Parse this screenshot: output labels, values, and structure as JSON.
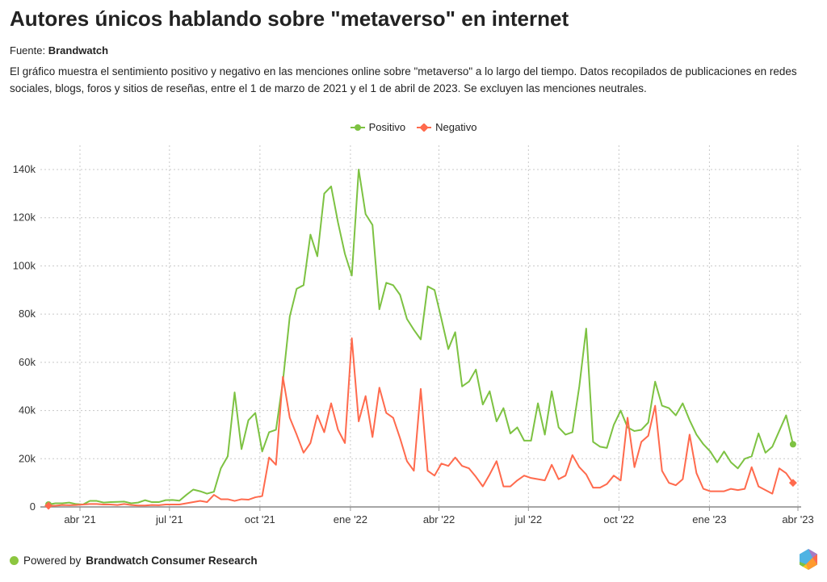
{
  "header": {
    "title": "Autores únicos hablando sobre \"metaverso\" en internet",
    "source_label": "Fuente: ",
    "source_name": "Brandwatch",
    "description": "El gráfico muestra el sentimiento positivo y negativo en las menciones online sobre \"metaverso\" a lo largo del tiempo. Datos recopilados de publicaciones en redes sociales, blogs, foros y sitios de reseñas, entre el 1 de marzo de 2021 y el 1 de abril de 2023. Se excluyen las menciones neutrales."
  },
  "footer": {
    "prefix": "Powered by ",
    "brand": "Brandwatch Consumer Research"
  },
  "chart_data": {
    "type": "line",
    "title": "Autores únicos hablando sobre \"metaverso\" en internet",
    "xlabel": "",
    "ylabel": "",
    "x_unit": "days since 2021-02-28 (weekly points)",
    "x_range": [
      0,
      757
    ],
    "ylim": [
      0,
      140000
    ],
    "grid": true,
    "legend_position": "top-center",
    "y_ticks": [
      {
        "value": 0,
        "label": "0"
      },
      {
        "value": 20000,
        "label": "20k"
      },
      {
        "value": 40000,
        "label": "40k"
      },
      {
        "value": 60000,
        "label": "60k"
      },
      {
        "value": 80000,
        "label": "80k"
      },
      {
        "value": 100000,
        "label": "100k"
      },
      {
        "value": 120000,
        "label": "120k"
      },
      {
        "value": 140000,
        "label": "140k"
      }
    ],
    "x_ticks": [
      {
        "value": 32,
        "label": "abr '21"
      },
      {
        "value": 123,
        "label": "jul '21"
      },
      {
        "value": 215,
        "label": "oct '21"
      },
      {
        "value": 307,
        "label": "ene '22"
      },
      {
        "value": 397,
        "label": "abr '22"
      },
      {
        "value": 488,
        "label": "jul '22"
      },
      {
        "value": 580,
        "label": "oct '22"
      },
      {
        "value": 672,
        "label": "ene '23"
      },
      {
        "value": 762,
        "label": "abr '23"
      }
    ],
    "series": [
      {
        "name": "Positivo",
        "color": "#7dc242",
        "values": [
          1000,
          1500,
          1500,
          1800,
          1200,
          1000,
          2500,
          2500,
          1800,
          2000,
          2100,
          2200,
          1500,
          1800,
          2800,
          2000,
          2000,
          2800,
          2900,
          2600,
          5000,
          7200,
          6500,
          5500,
          6300,
          16000,
          21000,
          47500,
          24000,
          36000,
          39000,
          23000,
          31000,
          32000,
          52000,
          79000,
          90500,
          92000,
          113000,
          104000,
          130000,
          133000,
          118000,
          105000,
          96000,
          140000,
          121500,
          117000,
          82000,
          93000,
          92000,
          88000,
          78000,
          73500,
          69500,
          91500,
          90000,
          78000,
          65500,
          72500,
          50000,
          52000,
          57000,
          42500,
          48000,
          35500,
          41000,
          30500,
          33000,
          27500,
          27500,
          43000,
          30000,
          48000,
          33000,
          30000,
          31000,
          50000,
          74000,
          27000,
          25000,
          24500,
          34000,
          40000,
          33000,
          31500,
          32000,
          35000,
          52000,
          42000,
          41000,
          38000,
          43000,
          36000,
          30000,
          26000,
          23000,
          18500,
          23000,
          18500,
          16000,
          20000,
          21000,
          30500,
          22500,
          25000,
          31500,
          38000,
          26000
        ]
      },
      {
        "name": "Negativo",
        "color": "#ff6a4d",
        "values": [
          500,
          500,
          800,
          700,
          800,
          1000,
          1200,
          1200,
          1000,
          1000,
          800,
          1200,
          800,
          600,
          600,
          800,
          700,
          1000,
          1000,
          1000,
          1500,
          2000,
          2500,
          2000,
          5000,
          3200,
          3200,
          2500,
          3200,
          3000,
          4000,
          4500,
          20500,
          17500,
          54000,
          37000,
          30000,
          22500,
          26500,
          38000,
          31000,
          43000,
          32000,
          26500,
          70000,
          35500,
          46000,
          29000,
          49500,
          39000,
          37000,
          28500,
          19000,
          15000,
          49000,
          15000,
          13000,
          18000,
          17000,
          20500,
          17000,
          16000,
          12500,
          8500,
          13500,
          19000,
          8500,
          8500,
          11000,
          13000,
          12000,
          11500,
          11000,
          17500,
          11500,
          13000,
          21500,
          16500,
          13500,
          8000,
          8000,
          9500,
          13000,
          11000,
          37000,
          16500,
          27000,
          29500,
          42000,
          15000,
          10000,
          9000,
          11500,
          30000,
          14000,
          7500,
          6500,
          6500,
          6500,
          7500,
          7000,
          7500,
          16500,
          8500,
          7000,
          5500,
          16000,
          14000,
          10000
        ]
      }
    ]
  }
}
